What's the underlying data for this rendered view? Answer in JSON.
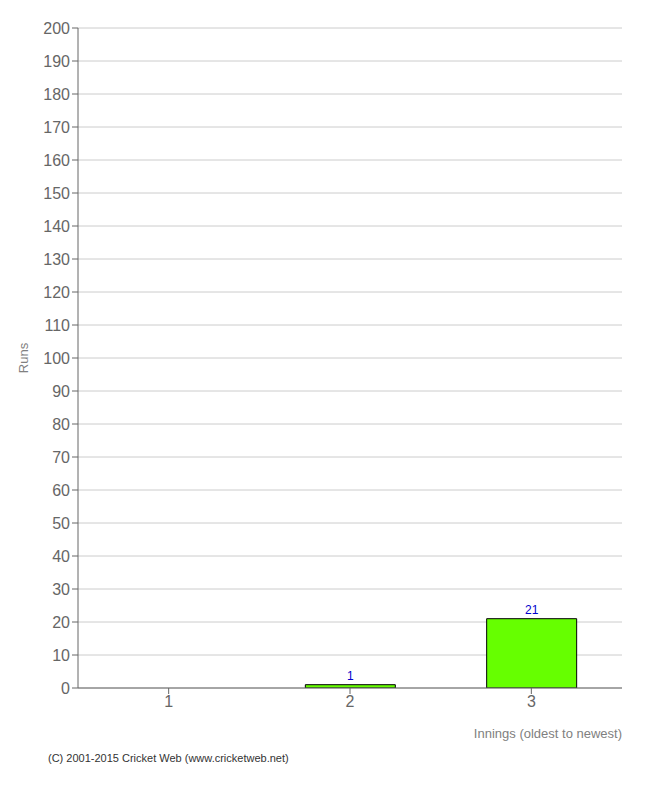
{
  "chart_data": {
    "type": "bar",
    "categories": [
      "1",
      "2",
      "3"
    ],
    "values": [
      0,
      1,
      21
    ],
    "color": "#66ff00",
    "ylabel": "Runs",
    "xlabel": "Innings (oldest to newest)",
    "ylim": [
      0,
      200
    ],
    "yticks": [
      0,
      10,
      20,
      30,
      40,
      50,
      60,
      70,
      80,
      90,
      100,
      110,
      120,
      130,
      140,
      150,
      160,
      170,
      180,
      190,
      200
    ],
    "grid": true,
    "data_labels": true,
    "annotations": [
      "(C) 2001-2015 Cricket Web (www.cricketweb.net)"
    ]
  }
}
